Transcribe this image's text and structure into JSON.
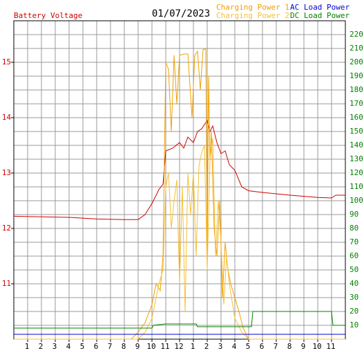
{
  "chart_data": {
    "type": "line",
    "title": "01/07/2023",
    "xlim": [
      0,
      24
    ],
    "xticks": [
      {
        "value": 1,
        "label": "1"
      },
      {
        "value": 2,
        "label": "2"
      },
      {
        "value": 3,
        "label": "3"
      },
      {
        "value": 4,
        "label": "4"
      },
      {
        "value": 5,
        "label": "5"
      },
      {
        "value": 6,
        "label": "6"
      },
      {
        "value": 7,
        "label": "7"
      },
      {
        "value": 8,
        "label": "8"
      },
      {
        "value": 9,
        "label": "9"
      },
      {
        "value": 10,
        "label": "10"
      },
      {
        "value": 11,
        "label": "11"
      },
      {
        "value": 12,
        "label": "12"
      },
      {
        "value": 13,
        "label": "1"
      },
      {
        "value": 14,
        "label": "2"
      },
      {
        "value": 15,
        "label": "3"
      },
      {
        "value": 16,
        "label": "4"
      },
      {
        "value": 17,
        "label": "5"
      },
      {
        "value": 18,
        "label": "6"
      },
      {
        "value": 19,
        "label": "7"
      },
      {
        "value": 20,
        "label": "8"
      },
      {
        "value": 21,
        "label": "9"
      },
      {
        "value": 22,
        "label": "10"
      },
      {
        "value": 23,
        "label": "11"
      }
    ],
    "ylim": [
      10,
      15.75
    ],
    "yticks": [
      11,
      12,
      13,
      14,
      15
    ],
    "y2lim": [
      0,
      230
    ],
    "y2ticks": [
      10,
      20,
      30,
      40,
      50,
      60,
      70,
      80,
      90,
      100,
      110,
      120,
      130,
      140,
      150,
      160,
      170,
      180,
      190,
      200,
      210,
      220
    ],
    "grid": true,
    "series": [
      {
        "name": "Battery Voltage",
        "color": "#d00000",
        "axis": "y",
        "x": [
          0,
          2,
          4,
          6,
          8,
          9,
          9.5,
          10,
          10.5,
          10.8,
          11,
          11.5,
          12,
          12.3,
          12.6,
          13,
          13.3,
          13.6,
          14,
          14.2,
          14.4,
          14.7,
          15,
          15.3,
          15.6,
          16,
          16.5,
          17,
          18,
          20,
          22,
          23,
          23.3,
          24
        ],
        "values": [
          12.22,
          12.21,
          12.2,
          12.17,
          12.16,
          12.16,
          12.25,
          12.45,
          12.7,
          12.8,
          13.4,
          13.45,
          13.55,
          13.45,
          13.65,
          13.55,
          13.75,
          13.8,
          13.95,
          13.75,
          13.85,
          13.55,
          13.35,
          13.4,
          13.15,
          13.05,
          12.75,
          12.68,
          12.65,
          12.6,
          12.56,
          12.55,
          12.6,
          12.6
        ]
      },
      {
        "name": "Charging Power 1",
        "color": "#f0a000",
        "axis": "y2",
        "x": [
          0,
          8.5,
          9,
          9.5,
          10,
          10.3,
          10.6,
          10.8,
          11,
          11.2,
          11.4,
          11.6,
          11.8,
          12,
          12.3,
          12.6,
          12.9,
          13.1,
          13.3,
          13.5,
          13.7,
          13.9,
          14,
          14.1,
          14.2,
          14.3,
          14.5,
          14.7,
          14.9,
          15.1,
          15.3,
          15.5,
          15.7,
          16,
          16.3,
          16.6,
          17,
          24
        ],
        "values": [
          0,
          0,
          5,
          12,
          25,
          40,
          35,
          60,
          200,
          195,
          150,
          205,
          170,
          205,
          206,
          206,
          160,
          205,
          208,
          180,
          209,
          210,
          60,
          190,
          130,
          150,
          80,
          60,
          100,
          30,
          70,
          50,
          40,
          30,
          20,
          8,
          0,
          0
        ]
      },
      {
        "name": "Charging Power 2",
        "color": "#f8c030",
        "axis": "y2",
        "x": [
          0,
          9,
          9.5,
          10,
          10.5,
          10.8,
          11,
          11.2,
          11.4,
          11.6,
          11.8,
          12,
          12.2,
          12.4,
          12.6,
          12.8,
          13,
          13.2,
          13.4,
          13.6,
          13.8,
          14,
          14.2,
          14.4,
          14.6,
          14.8,
          15,
          15.2,
          15.4,
          15.6,
          16,
          16.5,
          17,
          24
        ],
        "values": [
          0,
          0,
          5,
          15,
          40,
          50,
          110,
          120,
          80,
          100,
          115,
          40,
          110,
          20,
          120,
          90,
          120,
          60,
          125,
          135,
          140,
          50,
          130,
          145,
          60,
          100,
          70,
          25,
          60,
          40,
          15,
          5,
          0,
          0
        ]
      },
      {
        "name": "AC Load Power",
        "color": "#0000d0",
        "axis": "y2",
        "x": [
          0,
          6,
          12,
          18,
          24
        ],
        "values": [
          3.5,
          3.5,
          3.5,
          3.5,
          3.5
        ]
      },
      {
        "name": "DC Load Power",
        "color": "#008000",
        "axis": "y2",
        "x": [
          0,
          10,
          10.1,
          11,
          13.2,
          13.3,
          17.2,
          17.3,
          23,
          23.1,
          24
        ],
        "values": [
          8,
          8,
          10,
          11,
          11,
          9,
          9,
          20,
          20,
          10,
          10
        ]
      }
    ]
  }
}
